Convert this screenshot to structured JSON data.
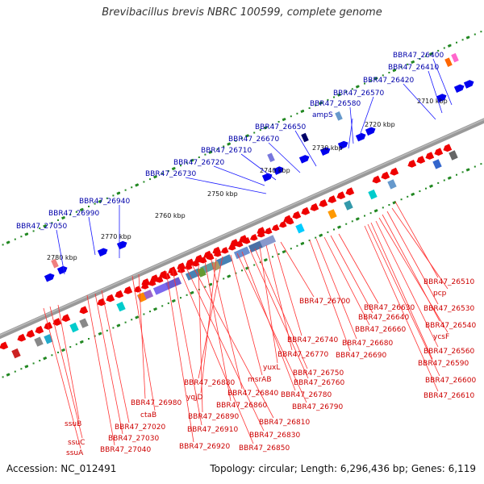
{
  "title": "Brevibacillus brevis NBRC 100599, complete genome",
  "footer": {
    "accession": "Accession: NC_012491",
    "stats": "Topology: circular; Length: 6,296,436 bp; Genes: 6,119"
  },
  "colors": {
    "forward_label": "#0000aa",
    "reverse_label": "#cc0000",
    "forward_gene": "#0000ee",
    "reverse_gene": "#ee0000",
    "tick": "#228822",
    "backbone": "#888888"
  },
  "kbp_ticks": [
    "2710 kbp",
    "2720 kbp",
    "2730 kbp",
    "2740 kbp",
    "2750 kbp",
    "2760 kbp",
    "2770 kbp",
    "2780 kbp"
  ],
  "forward_labels": [
    "BBR47_26400",
    "BBR47_26410",
    "BBR47_26420",
    "BBR47_26570",
    "BBR47_26580",
    "ampS",
    "BBR47_26650",
    "BBR47_26670",
    "BBR47_26710",
    "BBR47_26720",
    "BBR47_26730",
    "BBR47_26940",
    "BBR47_26990",
    "BBR47_27050"
  ],
  "reverse_labels": [
    "BBR47_26510",
    "pcp",
    "BBR47_26530",
    "BBR47_26540",
    "ycsF",
    "BBR47_26560",
    "BBR47_26590",
    "BBR47_26600",
    "BBR47_26610",
    "BBR47_26700",
    "BBR47_26630",
    "BBR47_26640",
    "BBR47_26660",
    "BBR47_26680",
    "BBR47_26690",
    "BBR47_26740",
    "BBR47_26770",
    "yuxL",
    "BBR47_26750",
    "BBR47_26760",
    "BBR47_26780",
    "BBR47_26790",
    "msrAB",
    "BBR47_26880",
    "yqjD",
    "BBR47_26840",
    "BBR47_26860",
    "BBR47_26890",
    "BBR47_26810",
    "BBR47_26830",
    "BBR47_26850",
    "BBR47_26910",
    "BBR47_26920",
    "BBR47_26980",
    "ctaB",
    "BBR47_27020",
    "BBR47_27030",
    "BBR47_27040",
    "ssuB",
    "ssuC",
    "ssuA"
  ]
}
